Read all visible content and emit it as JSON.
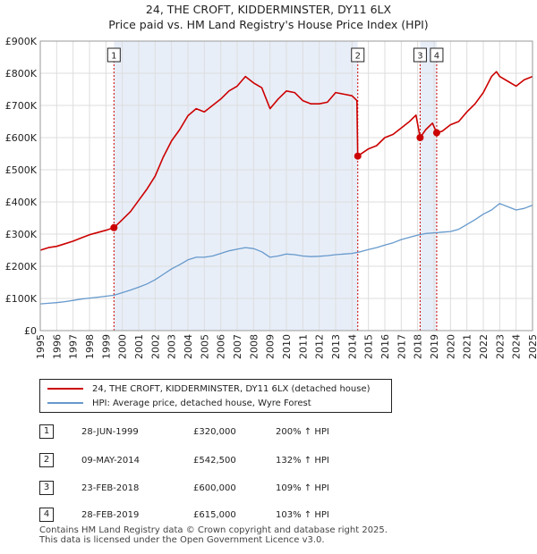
{
  "colors": {
    "property": "#cc0000",
    "hpi": "#6699cc",
    "shade": "#e8eef8",
    "marker_line": "#cc0000"
  },
  "title_line1": "24, THE CROFT, KIDDERMINSTER, DY11 6LX",
  "title_line2": "Price paid vs. HM Land Registry's House Price Index (HPI)",
  "chart_data": {
    "type": "line",
    "title": "24, THE CROFT, KIDDERMINSTER, DY11 6LX — Price paid vs. HM Land Registry's House Price Index (HPI)",
    "xlabel": "",
    "ylabel": "",
    "xlim": [
      1995.0,
      2025.0
    ],
    "ylim": [
      0,
      900000
    ],
    "yticks": [
      0,
      100000,
      200000,
      300000,
      400000,
      500000,
      600000,
      700000,
      800000,
      900000
    ],
    "ytick_labels": [
      "£0",
      "£100K",
      "£200K",
      "£300K",
      "£400K",
      "£500K",
      "£600K",
      "£700K",
      "£800K",
      "£900K"
    ],
    "xticks": [
      1995,
      1996,
      1997,
      1998,
      1999,
      2000,
      2001,
      2002,
      2003,
      2004,
      2005,
      2006,
      2007,
      2008,
      2009,
      2010,
      2011,
      2012,
      2013,
      2014,
      2015,
      2016,
      2017,
      2018,
      2019,
      2020,
      2021,
      2022,
      2023,
      2024,
      2025
    ],
    "xtick_labels": [
      "1995",
      "1996",
      "1997",
      "1998",
      "1999",
      "2000",
      "2001",
      "2002",
      "2003",
      "2004",
      "2005",
      "2006",
      "2007",
      "2008",
      "2009",
      "2010",
      "2011",
      "2012",
      "2013",
      "2014",
      "2015",
      "2016",
      "2017",
      "2018",
      "2019",
      "2020",
      "2021",
      "2022",
      "2023",
      "2024",
      "2025"
    ],
    "grid": true,
    "shaded_ranges": [
      [
        1999.49,
        2014.35
      ],
      [
        2018.15,
        2019.16
      ]
    ],
    "series": [
      {
        "name": "24, THE CROFT, KIDDERMINSTER, DY11 6LX (detached house)",
        "x": [
          1995.0,
          1995.5,
          1996.0,
          1996.5,
          1997.0,
          1997.5,
          1998.0,
          1998.5,
          1999.0,
          1999.49,
          2000.0,
          2000.5,
          2001.0,
          2001.5,
          2002.0,
          2002.5,
          2003.0,
          2003.5,
          2004.0,
          2004.5,
          2005.0,
          2005.5,
          2006.0,
          2006.5,
          2007.0,
          2007.5,
          2008.0,
          2008.5,
          2009.0,
          2009.5,
          2010.0,
          2010.5,
          2011.0,
          2011.5,
          2012.0,
          2012.5,
          2013.0,
          2013.5,
          2014.0,
          2014.3,
          2014.35,
          2015.0,
          2015.5,
          2016.0,
          2016.5,
          2017.0,
          2017.5,
          2017.9,
          2018.15,
          2018.5,
          2018.9,
          2019.16,
          2019.5,
          2020.0,
          2020.5,
          2021.0,
          2021.5,
          2022.0,
          2022.5,
          2022.8,
          2023.0,
          2023.5,
          2024.0,
          2024.5,
          2025.0
        ],
        "values": [
          250000,
          258000,
          262000,
          270000,
          278000,
          288000,
          298000,
          305000,
          312000,
          320000,
          345000,
          370000,
          405000,
          440000,
          480000,
          540000,
          590000,
          625000,
          668000,
          690000,
          680000,
          700000,
          720000,
          745000,
          760000,
          790000,
          770000,
          755000,
          690000,
          720000,
          745000,
          740000,
          715000,
          705000,
          705000,
          710000,
          740000,
          735000,
          730000,
          715000,
          542500,
          565000,
          575000,
          600000,
          610000,
          630000,
          650000,
          670000,
          600000,
          625000,
          645000,
          615000,
          620000,
          640000,
          650000,
          680000,
          705000,
          740000,
          790000,
          805000,
          790000,
          775000,
          760000,
          780000,
          790000
        ]
      },
      {
        "name": "HPI: Average price, detached house, Wyre Forest",
        "x": [
          1995.0,
          1995.5,
          1996.0,
          1996.5,
          1997.0,
          1997.5,
          1998.0,
          1998.5,
          1999.0,
          1999.5,
          2000.0,
          2000.5,
          2001.0,
          2001.5,
          2002.0,
          2002.5,
          2003.0,
          2003.5,
          2004.0,
          2004.5,
          2005.0,
          2005.5,
          2006.0,
          2006.5,
          2007.0,
          2007.5,
          2008.0,
          2008.5,
          2009.0,
          2009.5,
          2010.0,
          2010.5,
          2011.0,
          2011.5,
          2012.0,
          2012.5,
          2013.0,
          2013.5,
          2014.0,
          2014.5,
          2015.0,
          2015.5,
          2016.0,
          2016.5,
          2017.0,
          2017.5,
          2018.0,
          2018.5,
          2019.0,
          2019.5,
          2020.0,
          2020.5,
          2021.0,
          2021.5,
          2022.0,
          2022.5,
          2023.0,
          2023.5,
          2024.0,
          2024.5,
          2025.0
        ],
        "values": [
          83000,
          85000,
          87000,
          90000,
          94000,
          98000,
          101000,
          104000,
          107000,
          110000,
          118000,
          126000,
          135000,
          145000,
          158000,
          175000,
          192000,
          205000,
          220000,
          228000,
          228000,
          232000,
          240000,
          248000,
          253000,
          258000,
          255000,
          245000,
          228000,
          232000,
          238000,
          236000,
          232000,
          230000,
          231000,
          233000,
          236000,
          238000,
          240000,
          245000,
          252000,
          258000,
          266000,
          273000,
          283000,
          290000,
          297000,
          302000,
          304000,
          306000,
          308000,
          315000,
          330000,
          345000,
          362000,
          375000,
          395000,
          385000,
          375000,
          380000,
          390000
        ]
      }
    ],
    "transactions": [
      {
        "num": "1",
        "x": 1999.49,
        "value": 320000
      },
      {
        "num": "2",
        "x": 2014.35,
        "value": 542500
      },
      {
        "num": "3",
        "x": 2018.15,
        "value": 600000
      },
      {
        "num": "4",
        "x": 2019.16,
        "value": 615000
      }
    ]
  },
  "legend": {
    "property_label": "24, THE CROFT, KIDDERMINSTER, DY11 6LX (detached house)",
    "hpi_label": "HPI: Average price, detached house, Wyre Forest"
  },
  "transactions_table": [
    {
      "num": "1",
      "date": "28-JUN-1999",
      "price": "£320,000",
      "hpi": "200% ↑ HPI"
    },
    {
      "num": "2",
      "date": "09-MAY-2014",
      "price": "£542,500",
      "hpi": "132% ↑ HPI"
    },
    {
      "num": "3",
      "date": "23-FEB-2018",
      "price": "£600,000",
      "hpi": "109% ↑ HPI"
    },
    {
      "num": "4",
      "date": "28-FEB-2019",
      "price": "£615,000",
      "hpi": "103% ↑ HPI"
    }
  ],
  "footer": {
    "line1": "Contains HM Land Registry data © Crown copyright and database right 2025.",
    "line2": "This data is licensed under the Open Government Licence v3.0."
  }
}
